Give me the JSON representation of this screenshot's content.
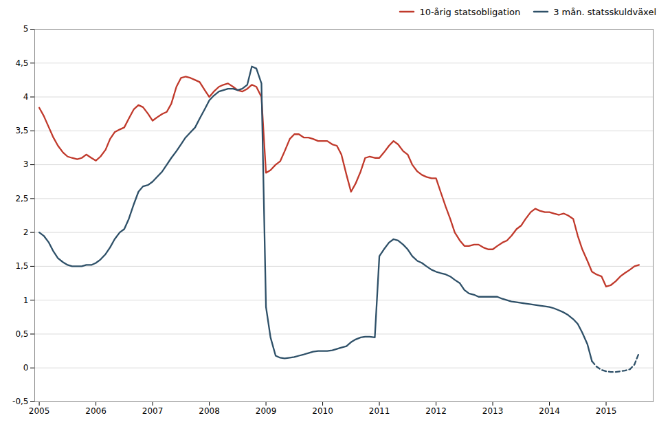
{
  "chart_data": {
    "type": "line",
    "xlim": [
      2004.92,
      2015.83
    ],
    "xticks": [
      2005,
      2006,
      2007,
      2008,
      2009,
      2010,
      2011,
      2012,
      2013,
      2014,
      2015
    ],
    "ylim": [
      -0.5,
      5
    ],
    "yticks": [
      {
        "value": -0.5,
        "label": "-0,5"
      },
      0,
      {
        "value": 0.5,
        "label": "0,5"
      },
      1,
      {
        "value": 1.5,
        "label": "1,5"
      },
      2,
      {
        "value": 2.5,
        "label": "2,5"
      },
      3,
      {
        "value": 3.5,
        "label": "3,5"
      },
      4,
      {
        "value": 4.5,
        "label": "4,5"
      },
      5
    ],
    "grid": true,
    "legend": "upper right",
    "series": [
      {
        "name": "10-årig statsobligation",
        "color": "#c0392b",
        "line_style": "solid",
        "x": [
          2005.0,
          2005.08,
          2005.17,
          2005.25,
          2005.33,
          2005.42,
          2005.5,
          2005.58,
          2005.67,
          2005.75,
          2005.83,
          2005.92,
          2006.0,
          2006.08,
          2006.17,
          2006.25,
          2006.33,
          2006.42,
          2006.5,
          2006.58,
          2006.67,
          2006.75,
          2006.83,
          2006.92,
          2007.0,
          2007.08,
          2007.17,
          2007.25,
          2007.33,
          2007.42,
          2007.5,
          2007.58,
          2007.67,
          2007.75,
          2007.83,
          2007.92,
          2008.0,
          2008.08,
          2008.17,
          2008.25,
          2008.33,
          2008.42,
          2008.5,
          2008.58,
          2008.67,
          2008.75,
          2008.83,
          2008.92,
          2009.0,
          2009.08,
          2009.17,
          2009.25,
          2009.33,
          2009.42,
          2009.5,
          2009.58,
          2009.67,
          2009.75,
          2009.83,
          2009.92,
          2010.0,
          2010.08,
          2010.17,
          2010.25,
          2010.33,
          2010.42,
          2010.5,
          2010.58,
          2010.67,
          2010.75,
          2010.83,
          2010.92,
          2011.0,
          2011.08,
          2011.17,
          2011.25,
          2011.33,
          2011.42,
          2011.5,
          2011.58,
          2011.67,
          2011.75,
          2011.83,
          2011.92,
          2012.0,
          2012.08,
          2012.17,
          2012.25,
          2012.33,
          2012.42,
          2012.5,
          2012.58,
          2012.67,
          2012.75,
          2012.83,
          2012.92,
          2013.0,
          2013.08,
          2013.17,
          2013.25,
          2013.33,
          2013.42,
          2013.5,
          2013.58,
          2013.67,
          2013.75,
          2013.83,
          2013.92,
          2014.0,
          2014.08,
          2014.17,
          2014.25,
          2014.33,
          2014.42,
          2014.5,
          2014.58,
          2014.67,
          2014.75,
          2014.83,
          2014.92,
          2015.0,
          2015.08,
          2015.17,
          2015.25,
          2015.33,
          2015.42,
          2015.5,
          2015.58
        ],
        "values": [
          3.84,
          3.72,
          3.55,
          3.4,
          3.28,
          3.18,
          3.12,
          3.1,
          3.08,
          3.1,
          3.15,
          3.1,
          3.06,
          3.12,
          3.22,
          3.38,
          3.48,
          3.52,
          3.55,
          3.68,
          3.82,
          3.88,
          3.85,
          3.75,
          3.65,
          3.7,
          3.75,
          3.78,
          3.9,
          4.15,
          4.28,
          4.3,
          4.28,
          4.25,
          4.22,
          4.1,
          4.0,
          4.08,
          4.15,
          4.18,
          4.2,
          4.15,
          4.1,
          4.08,
          4.12,
          4.18,
          4.15,
          4.0,
          2.88,
          2.92,
          3.0,
          3.05,
          3.2,
          3.38,
          3.45,
          3.45,
          3.4,
          3.4,
          3.38,
          3.35,
          3.35,
          3.35,
          3.3,
          3.28,
          3.15,
          2.85,
          2.6,
          2.72,
          2.9,
          3.1,
          3.12,
          3.1,
          3.1,
          3.18,
          3.28,
          3.35,
          3.3,
          3.2,
          3.15,
          3.0,
          2.9,
          2.85,
          2.82,
          2.8,
          2.8,
          2.6,
          2.38,
          2.2,
          2.0,
          1.88,
          1.8,
          1.8,
          1.82,
          1.82,
          1.78,
          1.75,
          1.75,
          1.8,
          1.85,
          1.88,
          1.95,
          2.05,
          2.1,
          2.2,
          2.3,
          2.35,
          2.32,
          2.3,
          2.3,
          2.28,
          2.26,
          2.28,
          2.25,
          2.2,
          1.95,
          1.75,
          1.58,
          1.42,
          1.38,
          1.35,
          1.2,
          1.22,
          1.28,
          1.35,
          1.4,
          1.45,
          1.5,
          1.52
        ]
      },
      {
        "name": "3 mån. statsskuldväxel",
        "color": "#2e5068",
        "line_style": "solid",
        "x": [
          2005.0,
          2005.08,
          2005.17,
          2005.25,
          2005.33,
          2005.42,
          2005.5,
          2005.58,
          2005.67,
          2005.75,
          2005.83,
          2005.92,
          2006.0,
          2006.08,
          2006.17,
          2006.25,
          2006.33,
          2006.42,
          2006.5,
          2006.58,
          2006.67,
          2006.75,
          2006.83,
          2006.92,
          2007.0,
          2007.08,
          2007.17,
          2007.25,
          2007.33,
          2007.42,
          2007.5,
          2007.58,
          2007.67,
          2007.75,
          2007.83,
          2007.92,
          2008.0,
          2008.08,
          2008.17,
          2008.25,
          2008.33,
          2008.42,
          2008.5,
          2008.58,
          2008.67,
          2008.75,
          2008.83,
          2008.92,
          2009.0,
          2009.08,
          2009.17,
          2009.25,
          2009.33,
          2009.42,
          2009.5,
          2009.58,
          2009.67,
          2009.75,
          2009.83,
          2009.92,
          2010.0,
          2010.08,
          2010.17,
          2010.25,
          2010.33,
          2010.42,
          2010.5,
          2010.58,
          2010.67,
          2010.75,
          2010.83,
          2010.92,
          2011.0,
          2011.08,
          2011.17,
          2011.25,
          2011.33,
          2011.42,
          2011.5,
          2011.58,
          2011.67,
          2011.75,
          2011.83,
          2011.92,
          2012.0,
          2012.08,
          2012.17,
          2012.25,
          2012.33,
          2012.42,
          2012.5,
          2012.58,
          2012.67,
          2012.75,
          2012.83,
          2012.92,
          2013.0,
          2013.08,
          2013.17,
          2013.25,
          2013.33,
          2013.42,
          2013.5,
          2013.58,
          2013.67,
          2013.75,
          2013.83,
          2013.92,
          2014.0,
          2014.08,
          2014.17,
          2014.25,
          2014.33,
          2014.42,
          2014.5,
          2014.58,
          2014.67,
          2014.75
        ],
        "values": [
          2.0,
          1.95,
          1.85,
          1.72,
          1.62,
          1.56,
          1.52,
          1.5,
          1.5,
          1.5,
          1.52,
          1.52,
          1.55,
          1.6,
          1.68,
          1.78,
          1.9,
          2.0,
          2.05,
          2.2,
          2.42,
          2.6,
          2.68,
          2.7,
          2.75,
          2.82,
          2.9,
          3.0,
          3.1,
          3.2,
          3.3,
          3.4,
          3.48,
          3.55,
          3.68,
          3.82,
          3.95,
          4.02,
          4.08,
          4.1,
          4.12,
          4.12,
          4.1,
          4.12,
          4.18,
          4.45,
          4.42,
          4.2,
          0.9,
          0.45,
          0.18,
          0.15,
          0.14,
          0.15,
          0.16,
          0.18,
          0.2,
          0.22,
          0.24,
          0.25,
          0.25,
          0.25,
          0.26,
          0.28,
          0.3,
          0.32,
          0.38,
          0.42,
          0.45,
          0.46,
          0.46,
          0.45,
          1.65,
          1.75,
          1.85,
          1.9,
          1.88,
          1.82,
          1.75,
          1.65,
          1.58,
          1.55,
          1.5,
          1.45,
          1.42,
          1.4,
          1.38,
          1.35,
          1.3,
          1.25,
          1.15,
          1.1,
          1.08,
          1.05,
          1.05,
          1.05,
          1.05,
          1.05,
          1.02,
          1.0,
          0.98,
          0.97,
          0.96,
          0.95,
          0.94,
          0.93,
          0.92,
          0.91,
          0.9,
          0.88,
          0.85,
          0.82,
          0.78,
          0.72,
          0.65,
          0.52,
          0.35,
          0.1
        ]
      },
      {
        "name": "3 mån. statsskuldväxel",
        "color": "#2e5068",
        "line_style": "dashed",
        "x": [
          2014.75,
          2014.83,
          2014.92,
          2015.0,
          2015.08,
          2015.17,
          2015.25,
          2015.33,
          2015.42,
          2015.5,
          2015.58
        ],
        "values": [
          0.1,
          0.02,
          -0.03,
          -0.05,
          -0.06,
          -0.06,
          -0.05,
          -0.04,
          -0.02,
          0.05,
          0.22
        ]
      }
    ]
  }
}
